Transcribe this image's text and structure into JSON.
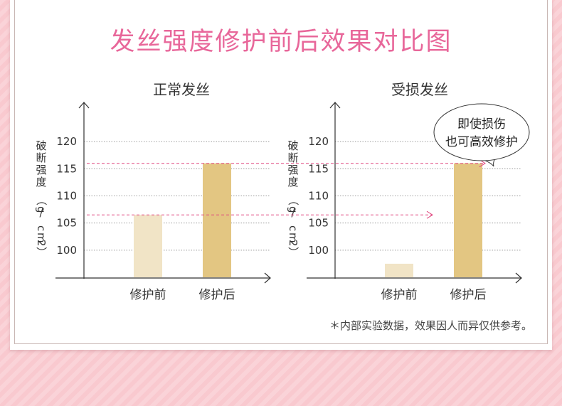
{
  "title": "发丝强度修护前后效果对比图",
  "footnote": "＊内部实验数据，效果因人而异仅供参考。",
  "callout": {
    "lines": [
      "即使损伤",
      "也可高效修护"
    ]
  },
  "colors": {
    "title": "#e8679a",
    "bar_before": "#f1e4c6",
    "bar_after": "#e3c682",
    "guide_line": "#e0457e",
    "background": "#f9c9cf"
  },
  "chart_data": [
    {
      "type": "bar",
      "title": "正常发丝",
      "ylabel": "破断强度（g/cm2）",
      "categories": [
        "修护前",
        "修护后"
      ],
      "values": [
        106.5,
        116
      ],
      "ylim": [
        95,
        125
      ],
      "yticks": [
        100,
        105,
        110,
        115,
        120
      ],
      "grid": true
    },
    {
      "type": "bar",
      "title": "受损发丝",
      "ylabel": "破断强度（g/cm2）",
      "categories": [
        "修护前",
        "修护后"
      ],
      "values": [
        97.5,
        116
      ],
      "ylim": [
        95,
        125
      ],
      "yticks": [
        100,
        105,
        110,
        115,
        120
      ],
      "grid": true
    }
  ]
}
